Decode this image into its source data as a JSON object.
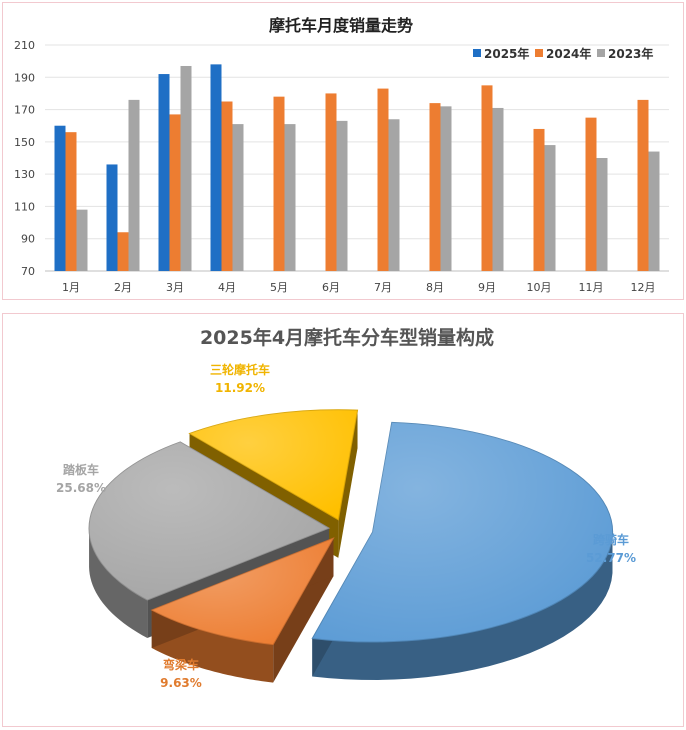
{
  "chart_data": [
    {
      "type": "bar",
      "title": "摩托车月度销量走势",
      "categories": [
        "1月",
        "2月",
        "3月",
        "4月",
        "5月",
        "6月",
        "7月",
        "8月",
        "9月",
        "10月",
        "11月",
        "12月"
      ],
      "series": [
        {
          "name": "2025年",
          "color": "#1f6fc5",
          "values": [
            160,
            136,
            192,
            198,
            null,
            null,
            null,
            null,
            null,
            null,
            null,
            null
          ]
        },
        {
          "name": "2024年",
          "color": "#ed7d31",
          "values": [
            156,
            94,
            167,
            175,
            178,
            180,
            183,
            174,
            185,
            158,
            165,
            176
          ]
        },
        {
          "name": "2023年",
          "color": "#a5a5a5",
          "values": [
            108,
            176,
            197,
            161,
            161,
            163,
            164,
            172,
            171,
            148,
            140,
            144
          ]
        }
      ],
      "yticks": [
        70,
        90,
        110,
        130,
        150,
        170,
        190,
        210
      ],
      "ylim": [
        70,
        210
      ],
      "grid": true,
      "legend": "top-right"
    },
    {
      "type": "pie",
      "title": "2025年4月摩托车分车型销量构成",
      "slices": [
        {
          "label": "跨骑车",
          "value": 52.77,
          "pct": "52.77%",
          "color": "#5b9bd5",
          "text_color": "#5b9bd5"
        },
        {
          "label": "弯梁车",
          "value": 9.63,
          "pct": "9.63%",
          "color": "#ed7d31",
          "text_color": "#e07b2e"
        },
        {
          "label": "踏板车",
          "value": 25.68,
          "pct": "25.68%",
          "color": "#a5a5a5",
          "text_color": "#a5a5a5"
        },
        {
          "label": "三轮摩托车",
          "value": 11.92,
          "pct": "11.92%",
          "color": "#ffc000",
          "text_color": "#f0b400"
        }
      ]
    }
  ]
}
